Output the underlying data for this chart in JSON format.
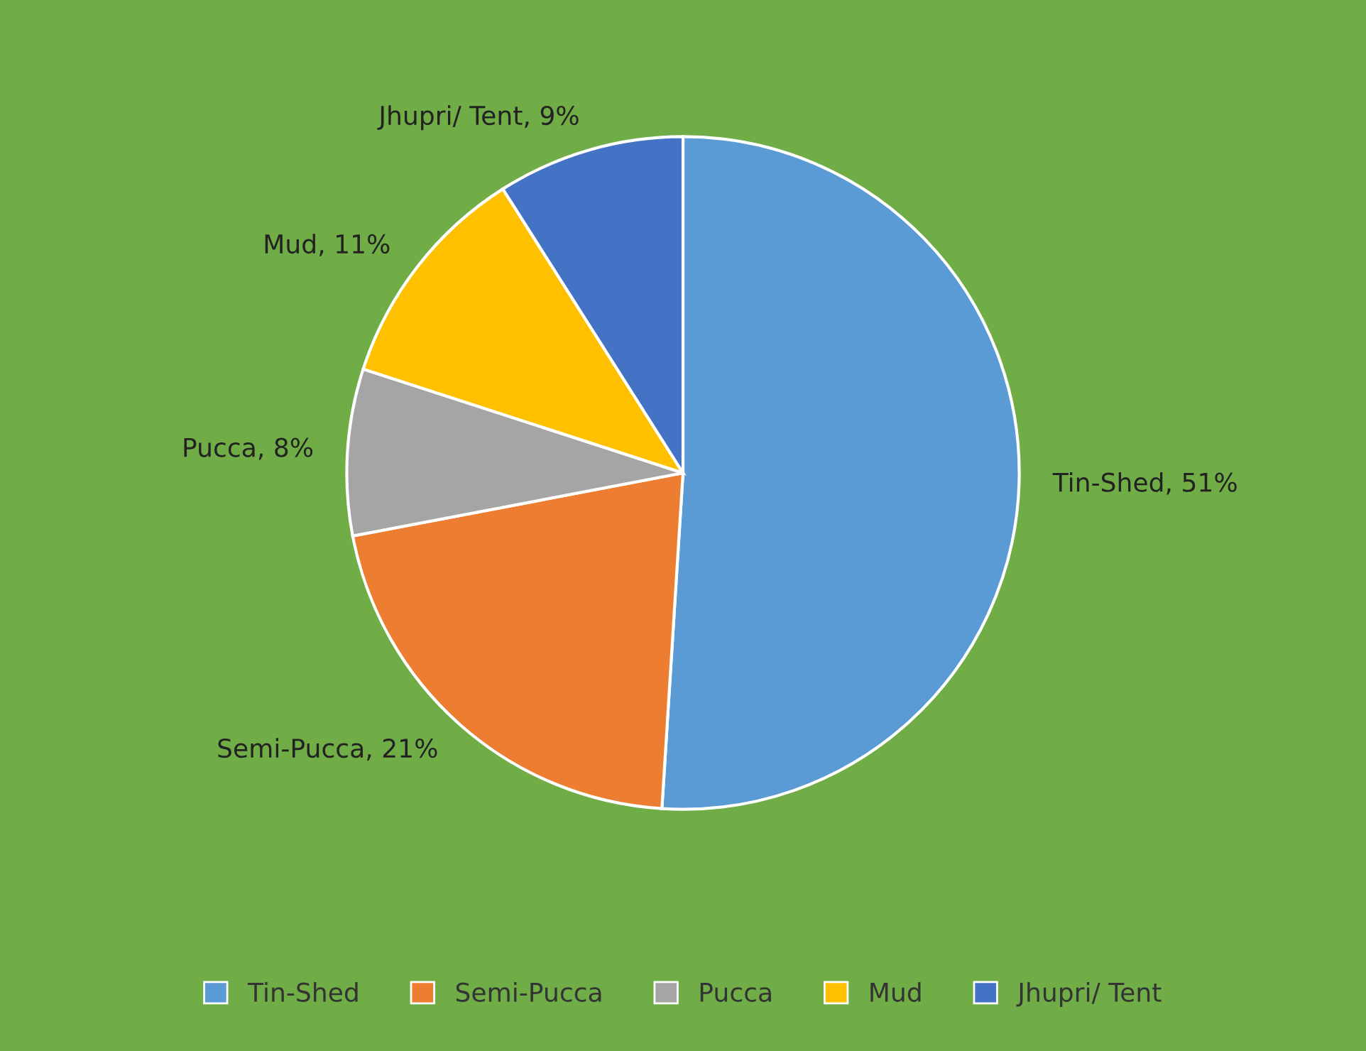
{
  "chart_data": {
    "type": "pie",
    "categories": [
      "Tin-Shed",
      "Semi-Pucca",
      "Pucca",
      "Mud",
      "Jhupri/ Tent"
    ],
    "values": [
      51,
      21,
      8,
      11,
      9
    ],
    "colors": [
      "#5b9bd5",
      "#ed7d31",
      "#a5a5a5",
      "#ffc000",
      "#4472c4"
    ],
    "value_labels": [
      "Tin-Shed, 51%",
      "Semi-Pucca, 21%",
      "Pucca, 8%",
      "Mud, 11%",
      "Jhupri/ Tent, 9%"
    ],
    "legend": "bottom"
  }
}
